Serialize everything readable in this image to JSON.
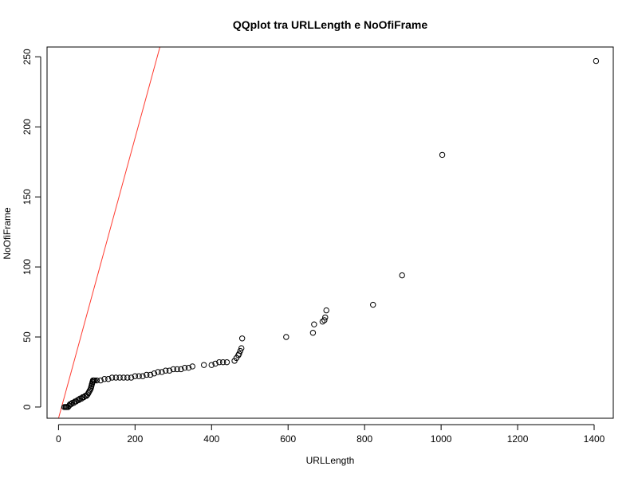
{
  "chart_data": {
    "type": "scatter",
    "title": "QQplot tra URLLength e NoOfiFrame",
    "xlabel": "URLLength",
    "ylabel": "NoOfiFrame",
    "xlim": [
      -30,
      1450
    ],
    "ylim": [
      -8,
      257
    ],
    "x_ticks": [
      0,
      200,
      400,
      600,
      800,
      1000,
      1200,
      1400
    ],
    "y_ticks": [
      0,
      50,
      100,
      150,
      200,
      250
    ],
    "grid": false,
    "legend": "none",
    "point_color": "#000000",
    "reference_line": {
      "color": "#ff3b30",
      "intercept": -8,
      "slope": 1.0
    },
    "x": [
      15,
      18,
      20,
      22,
      25,
      28,
      30,
      33,
      36,
      40,
      43,
      46,
      50,
      53,
      56,
      60,
      63,
      66,
      70,
      73,
      76,
      78,
      80,
      82,
      84,
      85,
      86,
      87,
      88,
      89,
      90,
      91,
      92,
      95,
      100,
      110,
      120,
      130,
      140,
      150,
      160,
      170,
      180,
      190,
      200,
      210,
      220,
      230,
      240,
      250,
      260,
      270,
      280,
      290,
      300,
      310,
      320,
      330,
      340,
      350,
      380,
      400,
      410,
      420,
      430,
      440,
      460,
      465,
      470,
      472,
      475,
      478,
      480,
      595,
      665,
      668,
      690,
      695,
      697,
      700,
      822,
      898,
      1003,
      1405
    ],
    "y": [
      0,
      0,
      0,
      0,
      0,
      1,
      2,
      2,
      3,
      3,
      4,
      4,
      5,
      5,
      6,
      6,
      7,
      7,
      8,
      8,
      9,
      10,
      11,
      12,
      13,
      14,
      15,
      16,
      17,
      18,
      19,
      19,
      19,
      19,
      19,
      19,
      20,
      20,
      21,
      21,
      21,
      21,
      21,
      21,
      22,
      22,
      22,
      23,
      23,
      24,
      25,
      25,
      26,
      26,
      27,
      27,
      27,
      28,
      28,
      29,
      30,
      30,
      31,
      32,
      32,
      32,
      33,
      35,
      37,
      38,
      40,
      42,
      49,
      50,
      53,
      59,
      61,
      62,
      64,
      69,
      73,
      94,
      180,
      247
    ]
  }
}
